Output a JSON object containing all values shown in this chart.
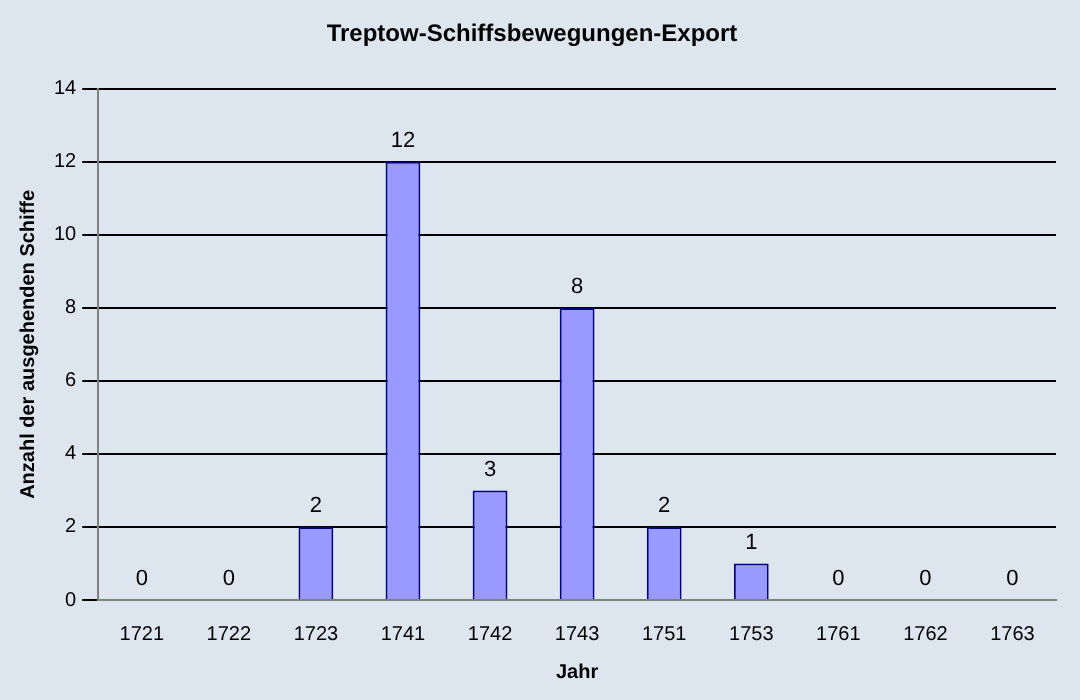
{
  "chart_data": {
    "type": "bar",
    "title": "Treptow-Schiffsbewegungen-Export",
    "xlabel": "Jahr",
    "ylabel": "Anzahl der ausgehenden Schiffe",
    "categories": [
      "1721",
      "1722",
      "1723",
      "1741",
      "1742",
      "1743",
      "1751",
      "1753",
      "1761",
      "1762",
      "1763"
    ],
    "values": [
      0,
      0,
      2,
      12,
      3,
      8,
      2,
      1,
      0,
      0,
      0
    ],
    "color": "#9999ff",
    "ylim": [
      0,
      14
    ],
    "yticks": [
      0,
      2,
      4,
      6,
      8,
      10,
      12,
      14
    ],
    "grid": "y",
    "legend": false,
    "data_labels": true
  }
}
